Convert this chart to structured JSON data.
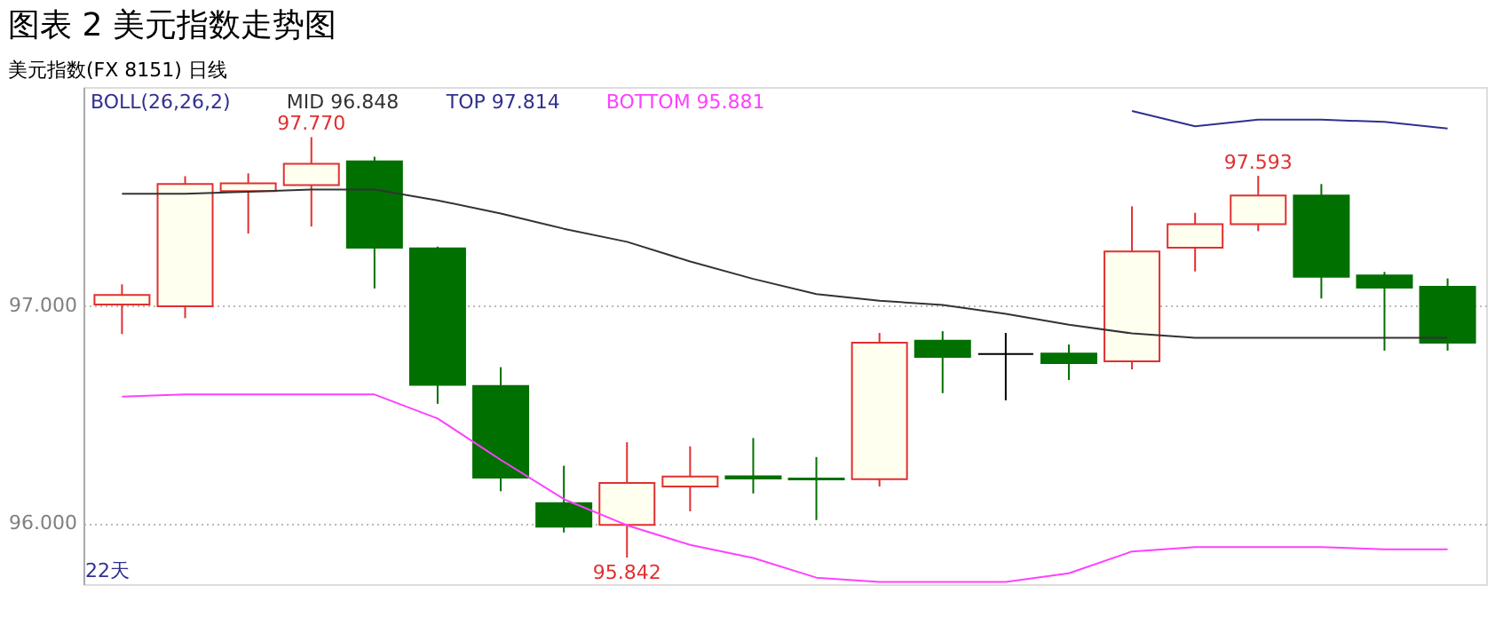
{
  "chart_data": {
    "type": "candlestick",
    "title": "图表 2 美元指数走势图",
    "subtitle": "美元指数(FX 8151)  日线",
    "legend_title": "BOLL(26,26,2)",
    "legend": "top left",
    "grid": "y",
    "tick_labels": "y",
    "categories": [
      null,
      null,
      null,
      null,
      null,
      null,
      null,
      null,
      null,
      null,
      null,
      null,
      null,
      null,
      null,
      null,
      null,
      null,
      null,
      null,
      null,
      null
    ],
    "ohlc": [
      [
        97.002,
        97.095,
        96.867,
        97.046
      ],
      [
        96.994,
        97.591,
        96.94,
        97.555
      ],
      [
        97.523,
        97.604,
        97.328,
        97.558
      ],
      [
        97.55,
        97.77,
        97.36,
        97.648
      ],
      [
        97.659,
        97.68,
        97.076,
        97.263
      ],
      [
        97.26,
        97.268,
        96.547,
        96.634
      ],
      [
        96.629,
        96.715,
        96.146,
        96.209
      ],
      [
        96.092,
        96.263,
        95.957,
        95.984
      ],
      [
        95.992,
        96.371,
        95.842,
        96.184
      ],
      [
        96.168,
        96.352,
        96.054,
        96.214
      ],
      [
        96.215,
        96.39,
        96.136,
        96.205
      ],
      [
        96.205,
        96.303,
        96.014,
        96.2
      ],
      [
        96.201,
        96.872,
        96.168,
        96.827
      ],
      [
        96.837,
        96.88,
        96.596,
        96.762
      ],
      [
        96.776,
        96.872,
        96.563,
        96.776
      ],
      [
        96.778,
        96.819,
        96.656,
        96.734
      ],
      [
        96.742,
        97.453,
        96.705,
        97.246
      ],
      [
        97.263,
        97.423,
        97.154,
        97.371
      ],
      [
        97.371,
        97.593,
        97.339,
        97.502
      ],
      [
        97.502,
        97.555,
        97.03,
        97.13
      ],
      [
        97.136,
        97.152,
        96.791,
        97.08
      ],
      [
        97.084,
        97.122,
        96.791,
        96.827
      ]
    ],
    "colors": [
      "#e03030",
      "#e03030",
      "#e03030",
      "#e03030",
      "#007000",
      "#007000",
      "#007000",
      "#007000",
      "#e03030",
      "#e03030",
      "#007000",
      "#007000",
      "#e03030",
      "#007000",
      "#000000",
      "#007000",
      "#e03030",
      "#e03030",
      "#e03030",
      "#007000",
      "#007000",
      "#007000"
    ],
    "series": [
      {
        "name": "MID 96.848",
        "type": "line",
        "color": "#333333",
        "values": [
          97.51,
          97.51,
          97.52,
          97.53,
          97.53,
          97.48,
          97.42,
          97.35,
          97.29,
          97.2,
          97.12,
          97.05,
          97.02,
          97.0,
          96.96,
          96.91,
          96.87,
          96.85,
          96.85,
          96.85,
          96.85,
          96.85
        ]
      },
      {
        "name": "TOP 97.814",
        "type": "line",
        "color": "#303090",
        "values": [
          null,
          null,
          null,
          null,
          null,
          null,
          null,
          null,
          null,
          null,
          null,
          null,
          null,
          null,
          null,
          null,
          97.89,
          97.82,
          97.85,
          97.85,
          97.84,
          97.81
        ]
      },
      {
        "name": "BOTTOM 95.881",
        "type": "line",
        "color": "#ff40ff",
        "values": [
          96.58,
          96.59,
          96.59,
          96.59,
          96.59,
          96.48,
          96.29,
          96.11,
          95.99,
          95.9,
          95.84,
          95.75,
          95.73,
          95.73,
          95.73,
          95.77,
          95.87,
          95.89,
          95.89,
          95.89,
          95.88,
          95.88
        ]
      }
    ],
    "ylim": [
      95.72,
      98.0
    ],
    "yticks": [
      {
        "value": 96,
        "label": "96.000"
      },
      {
        "value": 97,
        "label": "97.000"
      }
    ],
    "annotations": [
      {
        "text": "97.770",
        "y": 97.77
      },
      {
        "text": "95.842",
        "y": 95.842
      },
      {
        "text": "97.593",
        "y": 97.593
      },
      "22天"
    ]
  }
}
